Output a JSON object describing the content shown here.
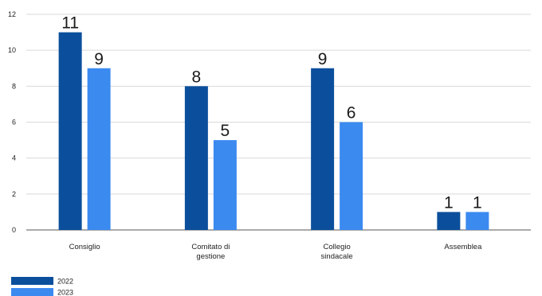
{
  "chart_data": {
    "type": "bar",
    "categories": [
      "Consiglio",
      "Comitato di gestione",
      "Collegio sindacale",
      "Assemblea"
    ],
    "category_lines": [
      [
        "Consiglio"
      ],
      [
        "Comitato di",
        "gestione"
      ],
      [
        "Collegio",
        "sindacale"
      ],
      [
        "Assemblea"
      ]
    ],
    "series": [
      {
        "name": "2022",
        "values": [
          11,
          8,
          9,
          1
        ],
        "color": "#0b4f9c"
      },
      {
        "name": "2023",
        "values": [
          9,
          5,
          6,
          1
        ],
        "color": "#3b8af0"
      }
    ],
    "ylim": [
      0,
      12
    ],
    "yticks": [
      0,
      2,
      4,
      6,
      8,
      10,
      12
    ],
    "data_labels": true,
    "grid": true,
    "legend_position": "bottom-left"
  }
}
